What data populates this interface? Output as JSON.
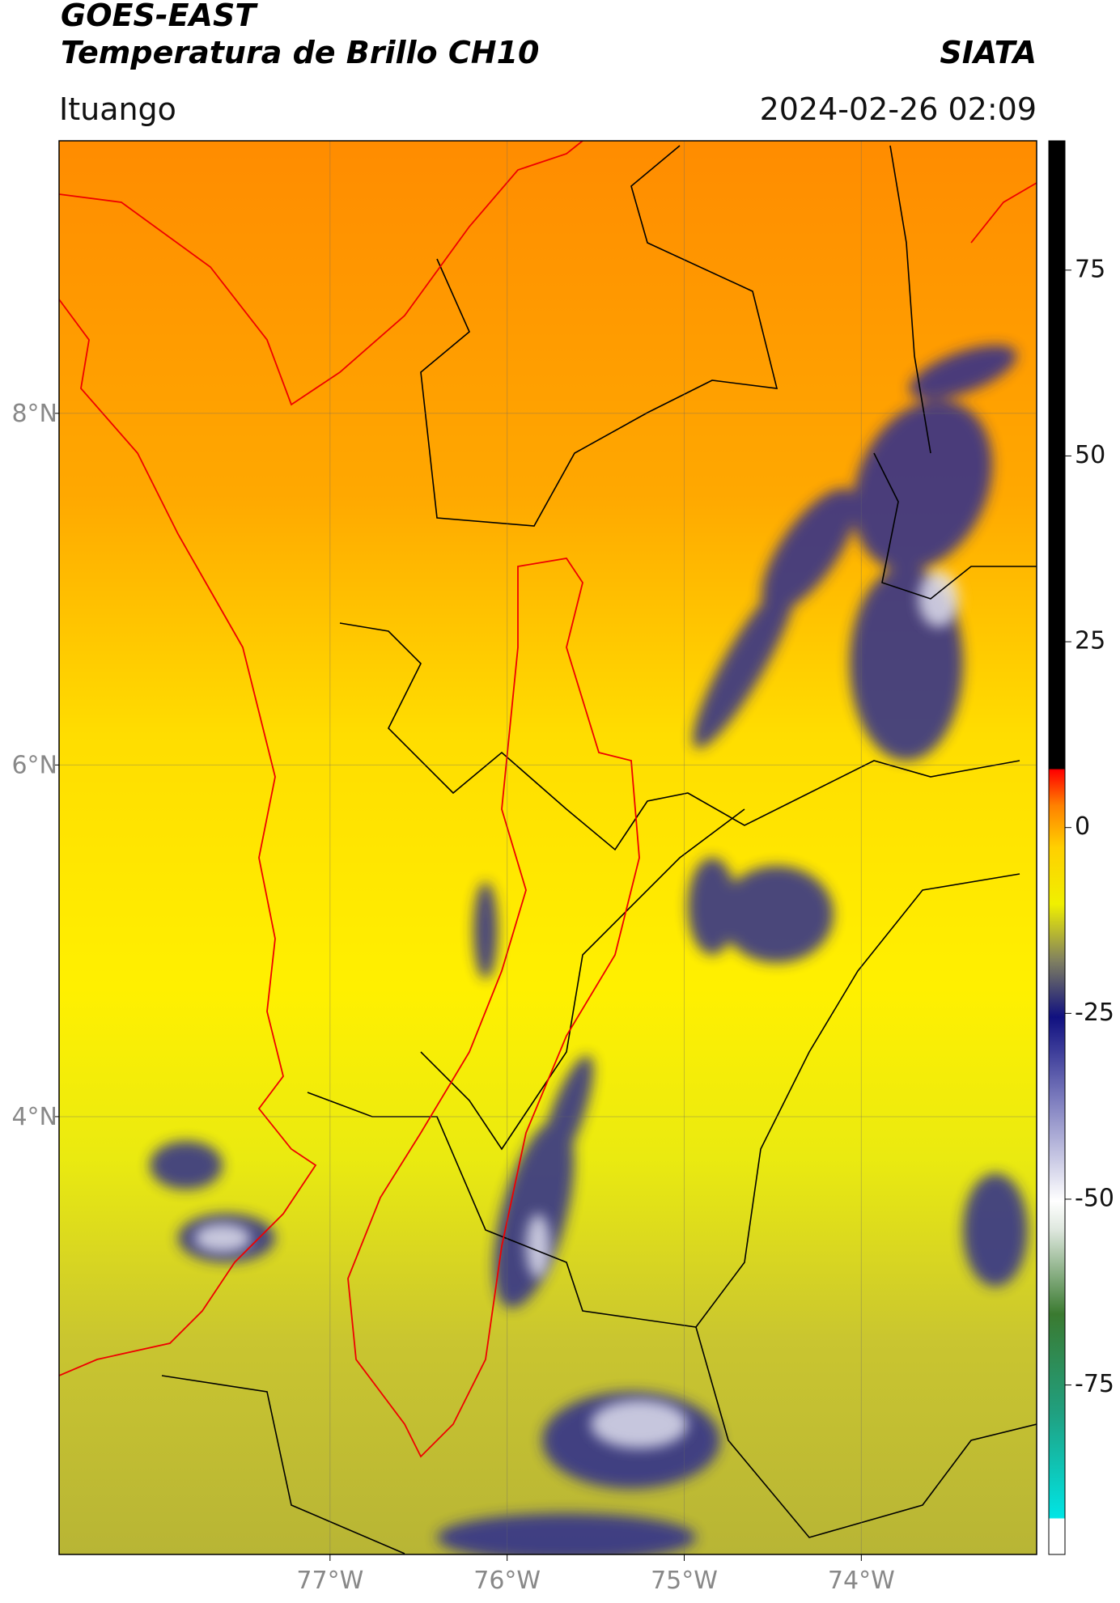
{
  "header": {
    "title": "GOES-EAST",
    "subtitle": "Temperatura de Brillo CH10",
    "agency": "SIATA",
    "region": "Ituango",
    "datetime": "2024-02-26 02:09"
  },
  "map": {
    "lon_range": [
      -78.53,
      -73.01
    ],
    "lat_range": [
      1.51,
      9.55
    ],
    "lon_ticks": [
      {
        "value": -77,
        "label": "77°W"
      },
      {
        "value": -76,
        "label": "76°W"
      },
      {
        "value": -75,
        "label": "75°W"
      },
      {
        "value": -74,
        "label": "74°W"
      }
    ],
    "lat_ticks": [
      {
        "value": 8,
        "label": "8°N"
      },
      {
        "value": 6,
        "label": "6°N"
      },
      {
        "value": 4,
        "label": "4°N"
      }
    ],
    "grid": true
  },
  "colorbar": {
    "range": [
      -97.8,
      92.4
    ],
    "ticks": [
      75,
      50,
      25,
      0,
      -25,
      -50,
      -75
    ]
  }
}
